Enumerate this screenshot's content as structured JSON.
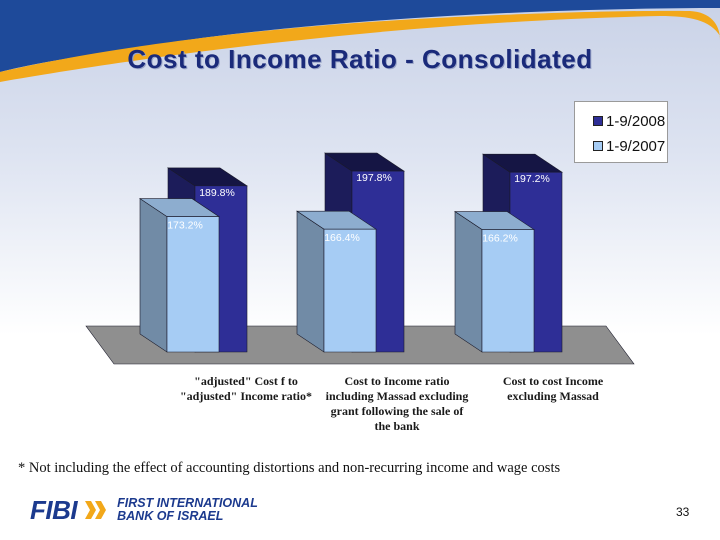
{
  "slide": {
    "title": "Cost to Income Ratio - Consolidated",
    "footnote": "* Not including the effect of accounting distortions and non-recurring income and wage costs",
    "page_number": "33"
  },
  "logo": {
    "wordmark": "FIBI",
    "line1": "FIRST INTERNATIONAL",
    "line2": "BANK OF ISRAEL"
  },
  "colors": {
    "series_2008": "#2e2e96",
    "series_2007": "#a6ccf4",
    "banner": "#1e4a9a",
    "accent": "#f2a81a",
    "title": "#1a2a7a"
  },
  "chart_data": {
    "type": "bar",
    "categories": [
      "\"adjusted\" Cost f to\n\"adjusted\" Income ratio*",
      "Cost to Income ratio\nincluding Massad excluding\ngrant following the sale of\nthe bank",
      "Cost to cost Income\nexcluding Massad"
    ],
    "series": [
      {
        "name": "1-9/2008",
        "values": [
          189.8,
          197.8,
          197.2
        ],
        "labels": [
          "189.8%",
          "197.8%",
          "197.2%"
        ]
      },
      {
        "name": "1-9/2007",
        "values": [
          173.2,
          166.4,
          166.2
        ],
        "labels": [
          "173.2%",
          "166.4%",
          "166.2%"
        ]
      }
    ],
    "ylim": [
      100,
      200
    ],
    "legend_position": "top-right",
    "grid": false
  }
}
